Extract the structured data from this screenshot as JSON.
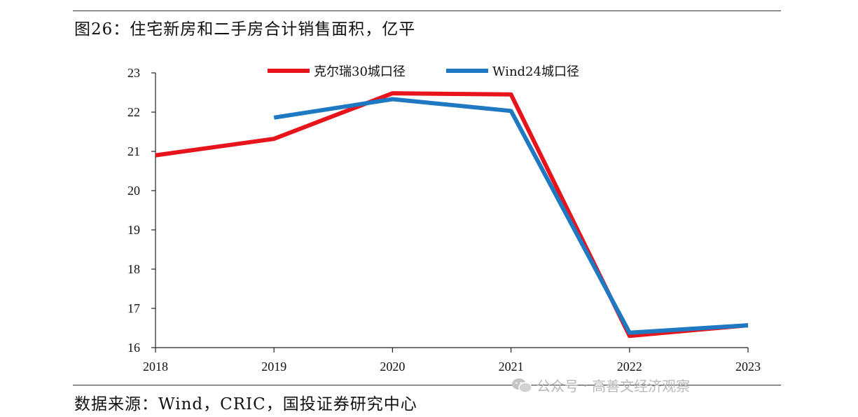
{
  "figure": {
    "title": "图26：住宅新房和二手房合计销售面积，亿平",
    "source": "数据来源：Wind，CRIC，国投证券研究中心",
    "watermark": "公众号 · 高善文经济观察"
  },
  "chart_data": {
    "type": "line",
    "title": "图26：住宅新房和二手房合计销售面积，亿平",
    "xlabel": "",
    "ylabel": "",
    "x": [
      "2018",
      "2019",
      "2020",
      "2021",
      "2022",
      "2023"
    ],
    "ylim": [
      16,
      23
    ],
    "yticks": [
      16,
      17,
      18,
      19,
      20,
      21,
      22,
      23
    ],
    "legend_position": "top-center",
    "series": [
      {
        "name": "克尔瑞30城口径",
        "color": "#e8141b",
        "values": [
          20.9,
          21.32,
          22.48,
          22.45,
          16.3,
          16.57
        ]
      },
      {
        "name": "Wind24城口径",
        "color": "#1f78c2",
        "values": [
          null,
          21.86,
          22.33,
          22.03,
          16.38,
          16.57
        ]
      }
    ]
  }
}
